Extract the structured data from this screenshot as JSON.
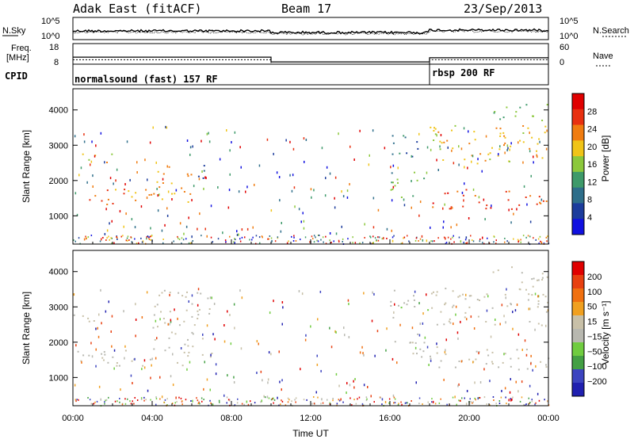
{
  "header": {
    "title": "Adak East (fitACF)",
    "beam": "Beam 17",
    "date": "23/Sep/2013"
  },
  "noise_panel": {
    "left_label": "N.Sky",
    "right_label": "N.Search",
    "ticks_left": [
      "10^5",
      "10^0"
    ],
    "ticks_right": [
      "10^5",
      "10^0"
    ]
  },
  "freq_panel": {
    "left_label_1": "Freq.",
    "left_label_2": "[MHz]",
    "right_label": "Nave",
    "ticks_left": [
      "18",
      "8"
    ],
    "ticks_right": [
      "60",
      "0"
    ],
    "freq_mhz_segments": [
      [
        0,
        10,
        11.7
      ],
      [
        10,
        18,
        9.2
      ],
      [
        18,
        24,
        11.4
      ]
    ],
    "nave_segments": [
      [
        0,
        10,
        14
      ],
      [
        10,
        18,
        0
      ],
      [
        18,
        24,
        14
      ]
    ]
  },
  "cpid_panel": {
    "label": "CPID",
    "programs": [
      {
        "start_hour": 0,
        "name": "normalsound (fast) 157 RF"
      },
      {
        "start_hour": 18,
        "name": "rbsp 200 RF"
      }
    ]
  },
  "colors": {
    "power_scale": [
      "#1010e0",
      "#1c3c9c",
      "#2e6e8a",
      "#3e9a6a",
      "#8cc83c",
      "#f0c418",
      "#f07c10",
      "#e83010",
      "#e00000"
    ],
    "velocity_scale": [
      "#2020b0",
      "#3c44c0",
      "#44a044",
      "#70cc40",
      "#b8b8b0",
      "#c8c0a8",
      "#f0a020",
      "#f07010",
      "#e84010",
      "#e00000"
    ]
  },
  "chart_data": [
    {
      "type": "heatmap",
      "name": "power",
      "ylabel": "Slant Range [km]",
      "x_unit": "hour UT",
      "xlim": [
        0,
        24
      ],
      "ylim": [
        200,
        4600
      ],
      "y_ticks": [
        "1000",
        "2000",
        "3000",
        "4000"
      ],
      "colorbar_label": "Power [dB]",
      "colorbar_ticks": [
        "4",
        "8",
        "12",
        "16",
        "20",
        "24",
        "28"
      ],
      "color_range": [
        0,
        32
      ],
      "regions": [
        {
          "t0": 0,
          "t1": 4,
          "r0": 1300,
          "r1": 1800,
          "val": 24
        },
        {
          "t0": 0,
          "t1": 2,
          "r0": 2500,
          "r1": 2800,
          "val": 18
        },
        {
          "t0": 4,
          "t1": 6,
          "r0": 1400,
          "r1": 2500,
          "val": 22
        },
        {
          "t0": 6,
          "t1": 7,
          "r0": 2000,
          "r1": 2500,
          "val": 8
        },
        {
          "t0": 16,
          "t1": 18,
          "r0": 1500,
          "r1": 2300,
          "val": 14
        },
        {
          "t0": 16,
          "t1": 17.5,
          "r0": 2700,
          "r1": 3500,
          "val": 10
        },
        {
          "t0": 18,
          "t1": 24,
          "r0": 1200,
          "r1": 1800,
          "val": 26
        },
        {
          "t0": 18,
          "t1": 24,
          "r0": 2500,
          "r1": 3600,
          "val": 20
        },
        {
          "t0": 21,
          "t1": 24,
          "r0": 3700,
          "r1": 4200,
          "val": 14
        }
      ]
    },
    {
      "type": "heatmap",
      "name": "velocity",
      "ylabel": "Slant Range [km]",
      "xlabel": "Time UT",
      "x_unit": "hour UT",
      "x_ticks": [
        "00:00",
        "04:00",
        "08:00",
        "12:00",
        "16:00",
        "20:00",
        "00:00"
      ],
      "xlim": [
        0,
        24
      ],
      "ylim": [
        200,
        4600
      ],
      "y_ticks": [
        "1000",
        "2000",
        "3000",
        "4000"
      ],
      "colorbar_label": "Velocity [m s⁻¹]",
      "colorbar_ticks": [
        "200",
        "100",
        "50",
        "15",
        "−15",
        "−50",
        "−100",
        "−200"
      ],
      "color_range": [
        -250,
        250
      ],
      "regions": [
        {
          "t0": 0,
          "t1": 6,
          "r0": 1300,
          "r1": 1800,
          "val": -5
        },
        {
          "t0": 0,
          "t1": 2,
          "r0": 2500,
          "r1": 2800,
          "val": -10
        },
        {
          "t0": 4,
          "t1": 7,
          "r0": 1600,
          "r1": 3500,
          "val": -8
        },
        {
          "t0": 16,
          "t1": 18,
          "r0": 1500,
          "r1": 2300,
          "val": 5
        },
        {
          "t0": 16,
          "t1": 18,
          "r0": 2700,
          "r1": 3500,
          "val": 40
        },
        {
          "t0": 18,
          "t1": 24,
          "r0": 1200,
          "r1": 1900,
          "val": 0
        },
        {
          "t0": 18,
          "t1": 24,
          "r0": 2500,
          "r1": 3600,
          "val": -5
        },
        {
          "t0": 21,
          "t1": 24,
          "r0": 3700,
          "r1": 4200,
          "val": -5
        }
      ]
    }
  ]
}
